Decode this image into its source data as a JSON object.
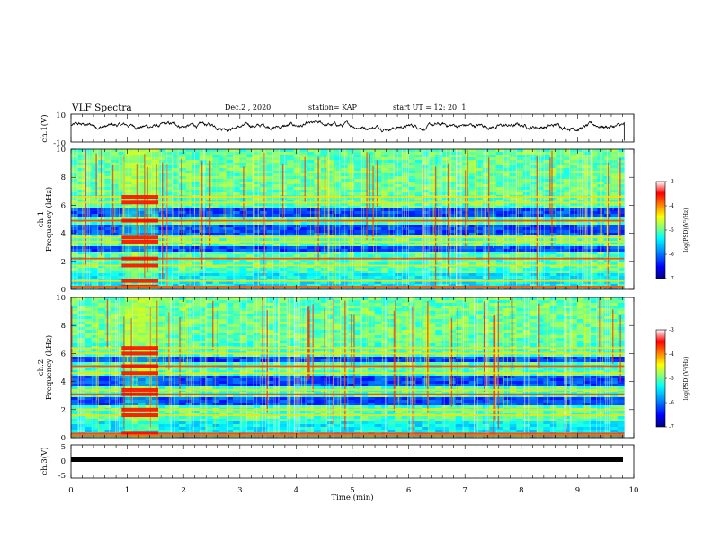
{
  "header": {
    "title": "VLF Spectra",
    "date": "Dec.2 , 2020",
    "station": "station= KAP",
    "start_ut": "start UT =  12: 20: 1"
  },
  "colors": {
    "waveform": "#000000",
    "colormap": [
      "#000080",
      "#0000ff",
      "#00a0ff",
      "#00ffff",
      "#80ff80",
      "#ffff00",
      "#ff8000",
      "#ff0000",
      "#ffffff"
    ]
  },
  "chart_data": [
    {
      "type": "line",
      "panel": "ch1-waveform",
      "ylabel": "ch.1(V)",
      "ylim": [
        -10,
        10
      ],
      "yticks": [
        "10",
        "-10"
      ],
      "xlim": [
        0,
        10
      ],
      "series": [
        {
          "x_range": [
            0,
            9.83
          ],
          "typical_range": [
            -3.5,
            5
          ],
          "description": "continuous noisy voltage trace"
        }
      ]
    },
    {
      "type": "heatmap",
      "panel": "ch1-spectrogram",
      "ylabel": "Frequency  (kHz)",
      "ylabel_channel": "ch.1",
      "xlim": [
        0,
        10
      ],
      "ylim": [
        0,
        10
      ],
      "yticks": [
        "0",
        "2",
        "4",
        "6",
        "8",
        "10"
      ],
      "data_x_range": [
        0,
        9.83
      ],
      "colorbar": {
        "label": "log(PSD)(V²/Hz)",
        "range": [
          -7,
          -3
        ],
        "ticks": [
          "-3",
          "-4",
          "-5",
          "-6",
          "-7"
        ]
      },
      "bright_lines_khz": [
        0.2,
        0.6,
        1.7,
        2.2,
        3.4,
        3.7,
        4.9,
        6.2,
        6.6
      ],
      "quiet_bands_khz": [
        [
          2.6,
          3.1
        ],
        [
          3.9,
          4.7
        ],
        [
          5.2,
          5.8
        ]
      ],
      "burst_interval_min": [
        0.9,
        1.55
      ]
    },
    {
      "type": "heatmap",
      "panel": "ch2-spectrogram",
      "ylabel": "Frequency  (kHz)",
      "ylabel_channel": "ch.2",
      "xlim": [
        0,
        10
      ],
      "ylim": [
        0,
        10
      ],
      "yticks": [
        "0",
        "2",
        "4",
        "6",
        "8",
        "10"
      ],
      "data_x_range": [
        0,
        9.83
      ],
      "colorbar": {
        "label": "log(PSD)(V²/Hz)",
        "range": [
          -7,
          -3
        ],
        "ticks": [
          "-3",
          "-4",
          "-5",
          "-6",
          "-7"
        ]
      },
      "bright_lines_khz": [
        0.3,
        1.6,
        2.0,
        3.1,
        3.4,
        4.6,
        5.1,
        6.0,
        6.4
      ],
      "quiet_bands_khz": [
        [
          2.4,
          2.9
        ],
        [
          3.7,
          4.4
        ],
        [
          5.3,
          5.8
        ]
      ],
      "burst_interval_min": [
        0.9,
        1.55
      ]
    },
    {
      "type": "line",
      "panel": "ch3-signal",
      "ylabel": "ch.3(V)",
      "ylim": [
        -5,
        5
      ],
      "yticks": [
        "5",
        "0",
        "-5"
      ],
      "xlim": [
        0,
        10
      ],
      "series": [
        {
          "x_range": [
            0,
            9.83
          ],
          "typical_range": [
            -0.2,
            0.2
          ],
          "description": "flat dense band near 0 V"
        }
      ]
    }
  ],
  "xaxis": {
    "label": "Time  (min)",
    "ticks": [
      "0",
      "1",
      "2",
      "3",
      "4",
      "5",
      "6",
      "7",
      "8",
      "9",
      "10"
    ]
  }
}
